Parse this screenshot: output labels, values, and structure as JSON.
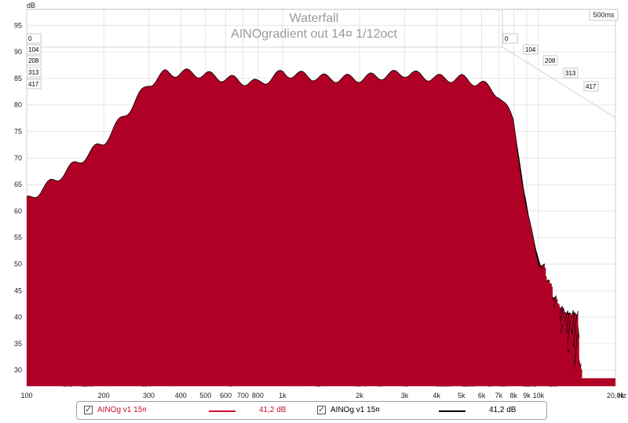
{
  "chart_data": {
    "type": "area",
    "title": "Waterfall",
    "subtitle": "AINOgradient out 14¤ 1/12oct",
    "ylabel": "dB",
    "xlabel": "Hz",
    "time_label": "500ms",
    "x_scale": "log",
    "xlim": [
      100,
      20000
    ],
    "ylim": [
      27,
      98
    ],
    "y_ticks": [
      "95",
      "90",
      "85",
      "80",
      "75",
      "70",
      "65",
      "60",
      "55",
      "50",
      "45",
      "40",
      "35",
      "30"
    ],
    "x_ticks": [
      "100",
      "200",
      "300",
      "400",
      "500",
      "600",
      "700",
      "800",
      "1k",
      "2k",
      "3k",
      "4k",
      "5k",
      "6k",
      "7k",
      "8k",
      "9k",
      "10k",
      "20,0k"
    ],
    "slice_labels": [
      "0",
      "104",
      "208",
      "313",
      "417"
    ],
    "grid": true,
    "colors": {
      "fill": "#b10026",
      "line": "#000000",
      "grid": "#dcdcdc"
    },
    "series": [
      {
        "name": "AINOg v1 15¤",
        "x": [
          100,
          130,
          200,
          300,
          350,
          450,
          600,
          800,
          1000,
          1500,
          2000,
          3000,
          4000,
          5000,
          6000,
          7000,
          8000,
          9000,
          10000
        ],
        "values": [
          62,
          66,
          73,
          84,
          86,
          86,
          85,
          84,
          86,
          85,
          85,
          86,
          85,
          85,
          84,
          82,
          77,
          60,
          50
        ]
      }
    ]
  },
  "legend": {
    "items": [
      {
        "name": "AINOg v1 15¤",
        "value": "41,2 dB",
        "color": "#c8102e",
        "checked": true
      },
      {
        "name": "AINOg v1 15¤",
        "value": "41,2 dB",
        "color": "#000000",
        "checked": true
      }
    ]
  }
}
